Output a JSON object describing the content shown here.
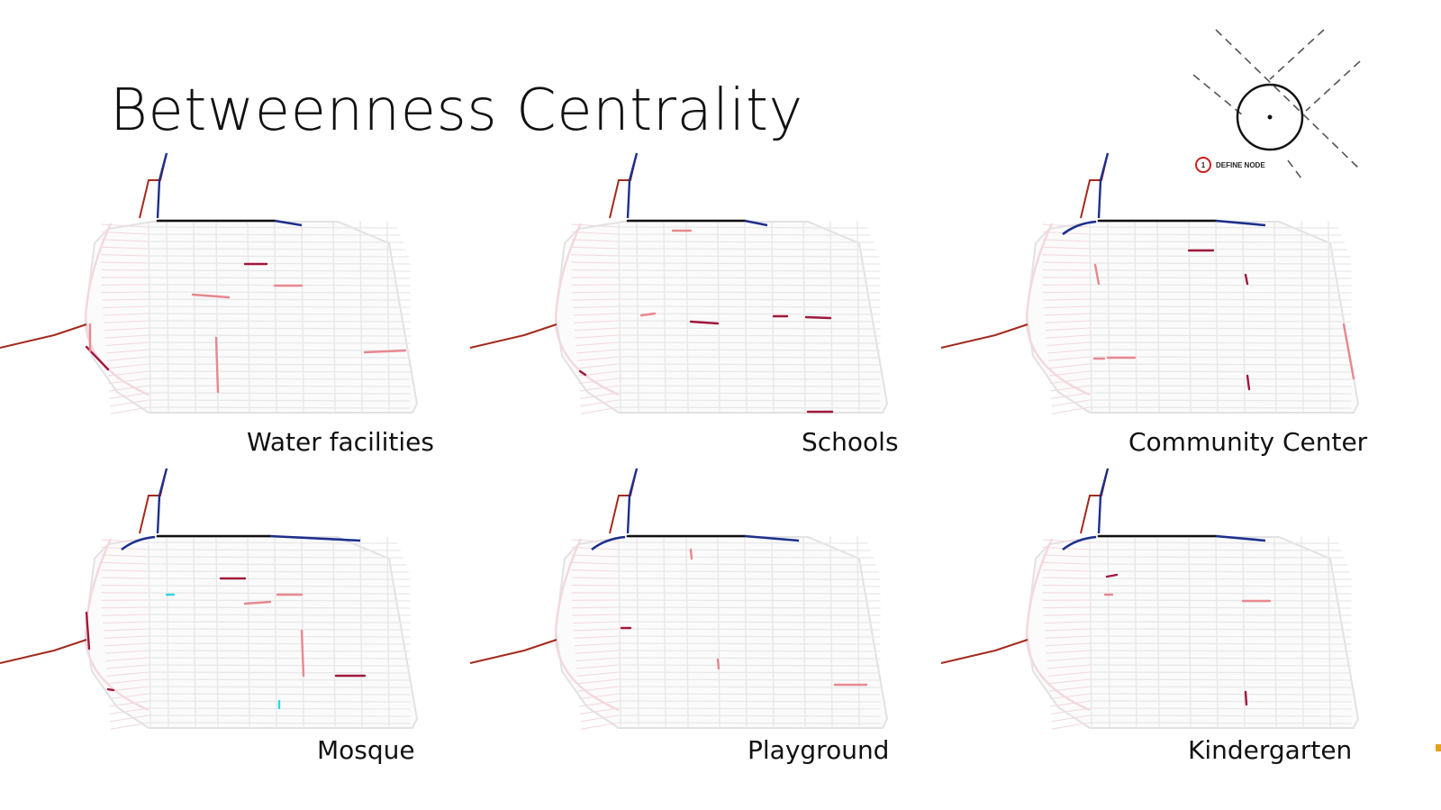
{
  "title": "Betweenness Centrality",
  "legend": {
    "number": "1",
    "label": "DEFINE NODE"
  },
  "maps": [
    {
      "label": "Water facilities"
    },
    {
      "label": "Schools"
    },
    {
      "label": "Community Center"
    },
    {
      "label": "Mosque"
    },
    {
      "label": "Playground"
    },
    {
      "label": "Kindergarten"
    }
  ],
  "colors": {
    "low": "#f3d9de",
    "grid": "#e8e8ea",
    "medium": "#e8888f",
    "high": "#a0183c",
    "access_road": "#a32a1e",
    "perimeter_blue": "#1c2f8c",
    "perimeter_black": "#111111",
    "outlier": "#33d6e0"
  }
}
